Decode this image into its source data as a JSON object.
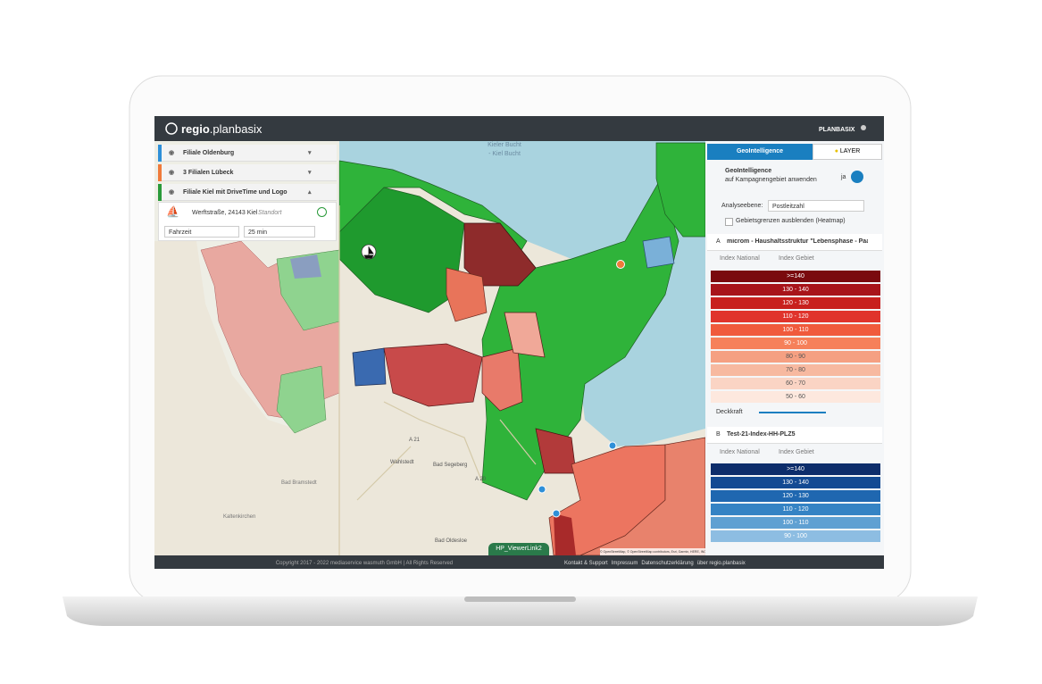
{
  "header": {
    "logo_bold": "regio",
    "logo_rest": ".planbasix",
    "user": "PLANBASIX"
  },
  "layers": [
    {
      "name": "Filiale Oldenburg",
      "color": "#2e8fd8"
    },
    {
      "name": "3 Filialen Lübeck",
      "color": "#f07a3a"
    },
    {
      "name": "Filiale Kiel mit DriveTime und Logo",
      "color": "#2a9a3a"
    }
  ],
  "location": {
    "address": "Werftstraße, 24143 Kiel",
    "tag": "Standort",
    "mode": "Fahrzeit",
    "time": "25 min"
  },
  "map": {
    "labels": [
      "Kieler Bucht",
      "- Kiel Bucht",
      "A 21",
      "A 20",
      "Bad Segeberg",
      "Wahlstedt",
      "Bad Oldesloe",
      "Bad Bramstedt",
      "Kaltenkirchen"
    ],
    "button": "HP_ViewerLink2",
    "attribution": "© OpenStreetMap, © OpenStreetMap contributors, Esri, Garmin, HERE, INCREMENT P, the GIS community, FAO, NOAA, USGS | Earthstar Geographics"
  },
  "panel": {
    "tab_geo": "GeoIntelligence",
    "tab_layer": "LAYER",
    "geo_title": "GeoIntelligence",
    "geo_sub": "auf Kampagnengebiet anwenden",
    "toggle": "ja",
    "analysis_label": "Analyseebene:",
    "analysis_value": "Postleitzahl",
    "hide_borders": "Gebietsgrenzen ausblenden (Heatmap)",
    "index_national": "Index National",
    "index_gebiet": "Index Gebiet",
    "opacity": "Deckkraft",
    "layer_a": {
      "letter": "A",
      "name": "microm - Haushaltsstruktur \"Lebensphase - Paar\"",
      "legend": [
        {
          "label": ">=140",
          "color": "#7a0a0e"
        },
        {
          "label": "130 - 140",
          "color": "#a8141a"
        },
        {
          "label": "120 - 130",
          "color": "#c8201e"
        },
        {
          "label": "110 - 120",
          "color": "#e0342c"
        },
        {
          "label": "100 - 110",
          "color": "#f05a3c"
        },
        {
          "label": "90 - 100",
          "color": "#f6805a"
        },
        {
          "label": "80 - 90",
          "color": "#f5a082"
        },
        {
          "label": "70 - 80",
          "color": "#f7b9a0"
        },
        {
          "label": "60 - 70",
          "color": "#fad4c4"
        },
        {
          "label": "50 - 60",
          "color": "#fde8de"
        }
      ]
    },
    "layer_b": {
      "letter": "B",
      "name": "Test-21-Index-HH-PLZ5",
      "legend": [
        {
          "label": ">=140",
          "color": "#0d2d6b"
        },
        {
          "label": "130 - 140",
          "color": "#134a93"
        },
        {
          "label": "120 - 130",
          "color": "#1f67b0"
        },
        {
          "label": "110 - 120",
          "color": "#3583c4"
        },
        {
          "label": "100 - 110",
          "color": "#5fa0d2"
        },
        {
          "label": "90 - 100",
          "color": "#8dbde2"
        }
      ]
    }
  },
  "footer": {
    "copyright": "Copyright 2017 - 2022 mediaservice wasmuth GmbH | All Rights Reserved",
    "links": [
      "Kontakt & Support",
      "Impressum",
      "Datenschutzerklärung",
      "über regio.planbasix"
    ]
  }
}
